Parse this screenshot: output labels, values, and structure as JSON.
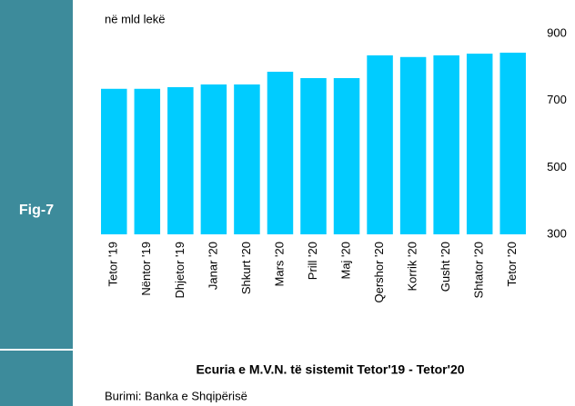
{
  "chart_data": {
    "type": "bar",
    "figure_label": "Fig-7",
    "unit_label": "në mld lekë",
    "title": "Ecuria e M.V.N. të sistemit Tetor'19 - Tetor'20",
    "source": "Burimi: Banka e Shqipërisë",
    "categories": [
      "Tetor '19",
      "Nëntor '19",
      "Dhjetor '19",
      "Janar '20",
      "Shkurt '20",
      "Mars '20",
      "Prill '20",
      "Maj '20",
      "Qershor '20",
      "Korrik '20",
      "Gusht '20",
      "Shtator '20",
      "Tetor '20"
    ],
    "values": [
      735,
      735,
      740,
      748,
      748,
      786,
      767,
      767,
      835,
      830,
      835,
      840,
      843
    ],
    "color": "#00ccff",
    "ylim": [
      300,
      900
    ],
    "yticks": [
      300,
      500,
      700,
      900
    ],
    "grid": false
  }
}
